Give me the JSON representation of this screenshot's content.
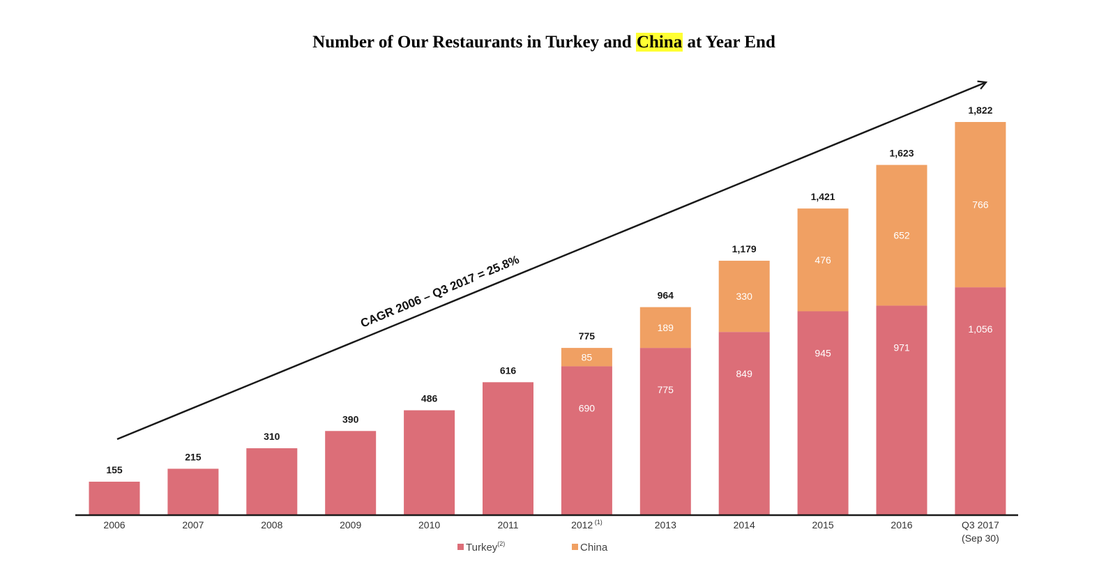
{
  "title": {
    "before": "Number of Our Restaurants in Turkey and ",
    "highlight": "China",
    "after": " at Year End",
    "highlight_color": "#ffff33"
  },
  "colors": {
    "turkey": "#dc6e78",
    "china": "#f0a063",
    "axis": "#1a1a1a"
  },
  "annotation": {
    "cagr_text": "CAGR 2006 – Q3 2017 = 25.8%"
  },
  "chart_data": {
    "type": "bar",
    "stacked": true,
    "title": "Number of Our Restaurants in Turkey and China at Year End",
    "categories": [
      "2006",
      "2007",
      "2008",
      "2009",
      "2010",
      "2011",
      "2012",
      "2013",
      "2014",
      "2015",
      "2016",
      "Q3 2017"
    ],
    "category_sublabels": [
      "",
      "",
      "",
      "",
      "",
      "",
      "",
      "",
      "",
      "",
      "",
      "(Sep 30)"
    ],
    "category_superscripts": [
      "",
      "",
      "",
      "",
      "",
      "",
      "(1)",
      "",
      "",
      "",
      "",
      ""
    ],
    "series": [
      {
        "name": "Turkey",
        "superscript": "(2)",
        "values": [
          155,
          215,
          310,
          390,
          486,
          616,
          690,
          775,
          849,
          945,
          971,
          1056
        ],
        "show_labels": [
          false,
          false,
          false,
          false,
          false,
          false,
          true,
          true,
          true,
          true,
          true,
          true
        ]
      },
      {
        "name": "China",
        "superscript": "",
        "values": [
          0,
          0,
          0,
          0,
          0,
          0,
          85,
          189,
          330,
          476,
          652,
          766
        ],
        "show_labels": [
          false,
          false,
          false,
          false,
          false,
          false,
          true,
          true,
          true,
          true,
          true,
          true
        ]
      }
    ],
    "totals": [
      "155",
      "215",
      "310",
      "390",
      "486",
      "616",
      "775",
      "964",
      "1,179",
      "1,421",
      "1,623",
      "1,822"
    ],
    "value_labels": {
      "turkey": [
        "",
        "",
        "",
        "",
        "",
        "",
        "690",
        "775",
        "849",
        "945",
        "971",
        "1,056"
      ],
      "china": [
        "",
        "",
        "",
        "",
        "",
        "",
        "85",
        "189",
        "330",
        "476",
        "652",
        "766"
      ]
    },
    "ylim": [
      0,
      1822
    ],
    "grid": false,
    "legend_position": "bottom"
  }
}
